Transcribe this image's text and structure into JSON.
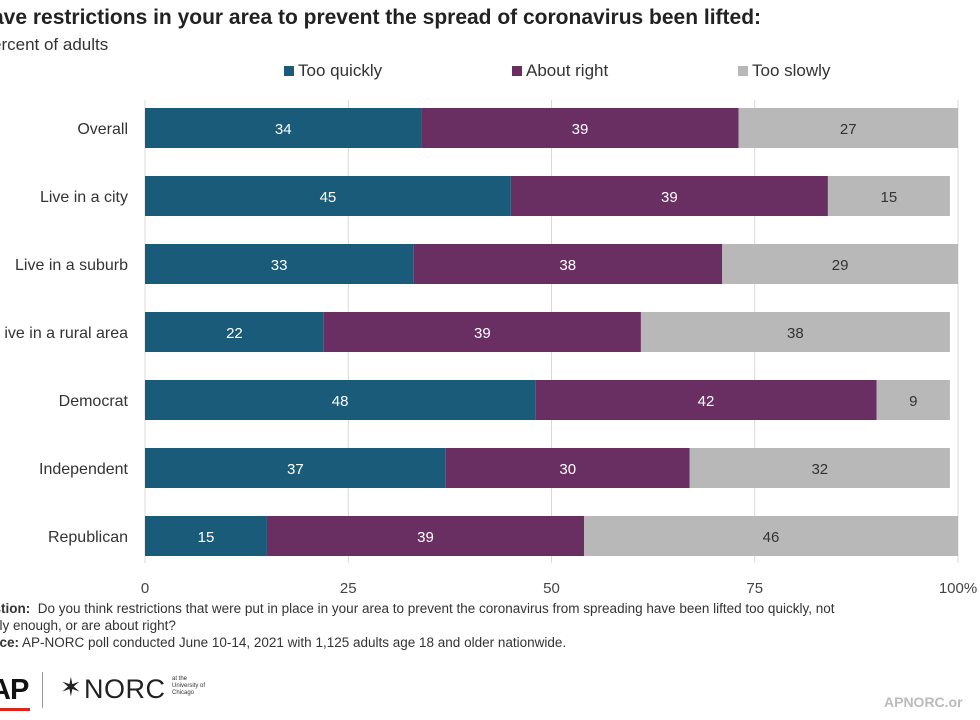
{
  "title": "ave restrictions in your area to prevent the spread of coronavirus been lifted:",
  "subtitle": "ercent of adults",
  "colors": {
    "too_quickly": "#1b5b7a",
    "about_right": "#6a2f62",
    "too_slowly": "#b8b8b8",
    "grid": "#d9d9d9"
  },
  "legend": [
    {
      "label": "Too quickly",
      "color": "#1b5b7a"
    },
    {
      "label": "About right",
      "color": "#6a2f62"
    },
    {
      "label": "Too slowly",
      "color": "#b8b8b8"
    }
  ],
  "chart_data": {
    "type": "bar",
    "orientation": "horizontal",
    "stacked": true,
    "categories": [
      "Overall",
      "Live in a city",
      "Live in a suburb",
      "ive in a rural area",
      "Democrat",
      "Independent",
      "Republican"
    ],
    "series": [
      {
        "name": "Too quickly",
        "values": [
          34,
          45,
          33,
          22,
          48,
          37,
          15
        ]
      },
      {
        "name": "About right",
        "values": [
          39,
          39,
          38,
          39,
          42,
          30,
          39
        ]
      },
      {
        "name": "Too slowly",
        "values": [
          27,
          15,
          29,
          38,
          9,
          32,
          46
        ]
      }
    ],
    "xlim": [
      0,
      100
    ],
    "xticks": [
      "0",
      "25",
      "50",
      "75",
      "100%"
    ],
    "grid": true,
    "legend_position": "top"
  },
  "notes": {
    "question_label": "estion:",
    "question_text": "Do you think restrictions that were put in place in your area to prevent the coronavirus from spreading have been lifted too quickly, not",
    "question_cont": "ckly enough, or are about right?",
    "source_label": "urce:",
    "source_text": "AP-NORC poll conducted June 10-14, 2021 with 1,125 adults age 18 and older nationwide."
  },
  "logos": {
    "ap": "AP",
    "norc": "NORC",
    "norc_sub": "at the University of Chicago",
    "site": "APNORC.or"
  }
}
